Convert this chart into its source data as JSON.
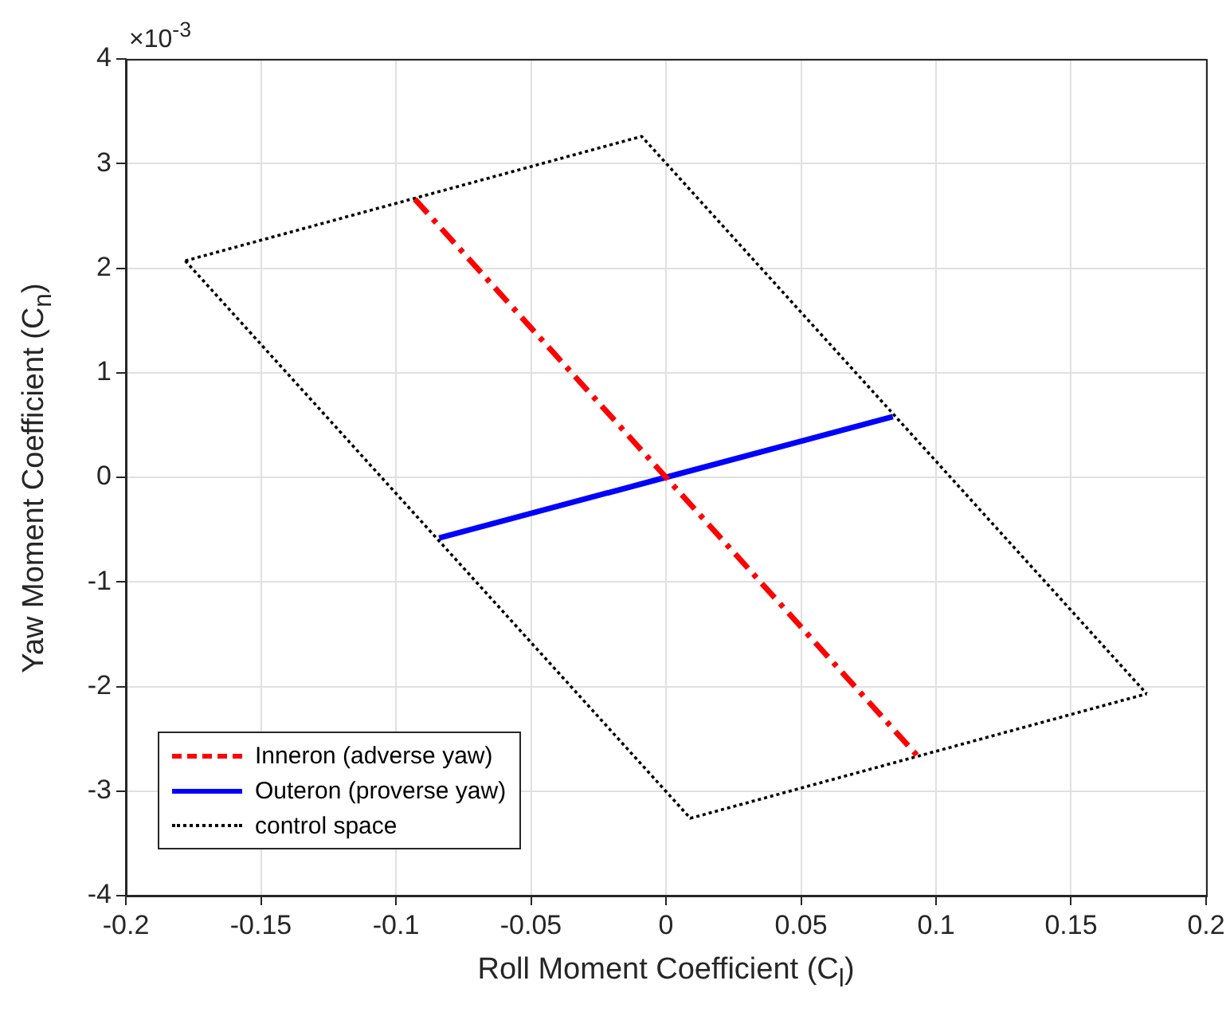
{
  "chart_data": {
    "type": "line",
    "xlabel": "Roll Moment Coefficient (C$_{l}$)",
    "ylabel": "Yaw Moment Coefficient (C$_{n}$)",
    "annotations": [
      "×10$^{-3}$"
    ],
    "xlim": [
      -0.2,
      0.2
    ],
    "xticks": [
      -0.2,
      -0.15,
      -0.1,
      -0.05,
      0,
      0.05,
      0.1,
      0.15,
      0.2
    ],
    "ylim": [
      -4,
      4
    ],
    "yticks": [
      -4,
      -3,
      -2,
      -1,
      0,
      1,
      2,
      3,
      4
    ],
    "grid": true,
    "legend": "bottom left",
    "marker": "none",
    "series": [
      {
        "name": "Inneron (adverse yaw)",
        "color": "#ff0000",
        "line_style": "dashed",
        "x": [
          -0.093,
          0,
          0.093
        ],
        "values": [
          2.66,
          0,
          -2.66
        ]
      },
      {
        "name": "Outeron (proverse yaw)",
        "color": "#0000ff",
        "line_style": "solid",
        "x": [
          -0.084,
          0,
          0.084
        ],
        "values": [
          -0.58,
          0,
          0.58
        ]
      },
      {
        "name": "control space",
        "color": "#000000",
        "line_style": "dotted",
        "x": [
          -0.178,
          -0.009,
          0.178
        ],
        "values": [
          2.07,
          3.26,
          -2.07
        ]
      },
      {
        "color": "#000000",
        "line_style": "dotted",
        "x": [
          -0.178,
          0.009,
          0.178
        ],
        "values": [
          2.07,
          -3.26,
          -2.07
        ]
      }
    ]
  }
}
